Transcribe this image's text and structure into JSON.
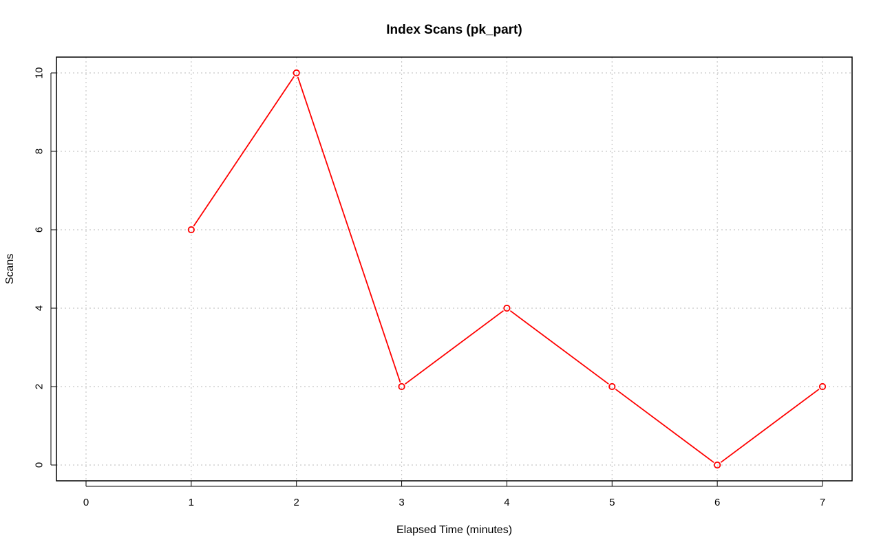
{
  "chart_data": {
    "type": "line",
    "title": "Index Scans (pk_part)",
    "xlabel": "Elapsed Time (minutes)",
    "ylabel": "Scans",
    "xlim": [
      0,
      7
    ],
    "ylim": [
      0,
      10
    ],
    "x_ticks": [
      0,
      1,
      2,
      3,
      4,
      5,
      6,
      7
    ],
    "y_ticks": [
      0,
      2,
      4,
      6,
      8,
      10
    ],
    "grid": true,
    "grid_style": "dotted",
    "series": [
      {
        "color": "#ff0000",
        "marker": "open-circle",
        "x": [
          1,
          2,
          3,
          4,
          5,
          6,
          7
        ],
        "y": [
          6,
          10,
          2,
          4,
          2,
          0,
          2
        ]
      }
    ]
  }
}
